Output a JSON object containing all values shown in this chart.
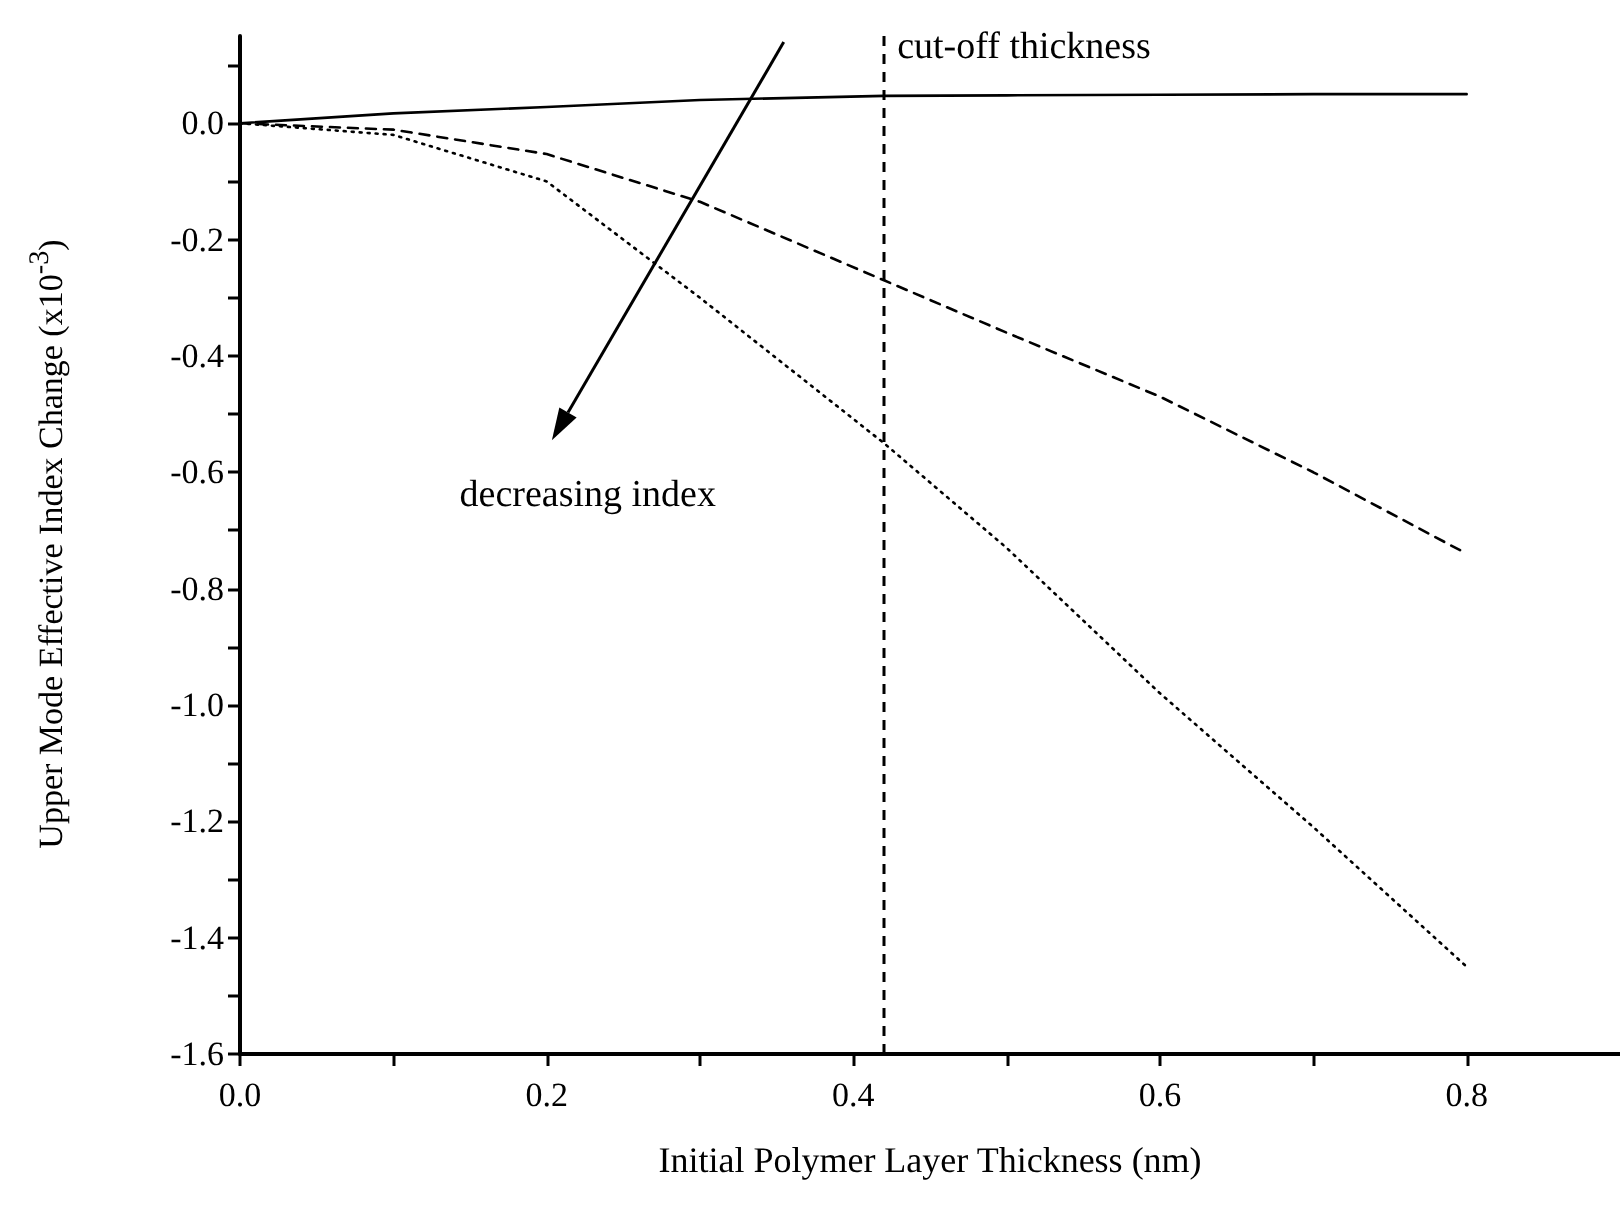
{
  "chart_data": {
    "type": "line",
    "xlabel": "Initial Polymer Layer Thickness (nm)",
    "ylabel": "Upper Mode Effective Index Change (x10$^{-3}$)",
    "x": [
      0,
      0.1,
      0.2,
      0.3,
      0.42,
      0.5,
      0.6,
      0.7,
      0.8
    ],
    "series": [
      {
        "color": "#000000",
        "line_style": "solid",
        "values": [
          0,
          0.017,
          0.028,
          0.04,
          0.047,
          0.048,
          0.049,
          0.05,
          0.05
        ]
      },
      {
        "color": "#000000",
        "line_style": "dashed",
        "values": [
          0,
          -0.011,
          -0.053,
          -0.135,
          -0.27,
          -0.36,
          -0.47,
          -0.6,
          -0.74
        ]
      },
      {
        "color": "#000000",
        "line_style": "dotted",
        "values": [
          0,
          -0.02,
          -0.1,
          -0.3,
          -0.55,
          -0.73,
          -0.98,
          -1.21,
          -1.45
        ]
      }
    ],
    "xlim": [
      0,
      0.9
    ],
    "ylim": [
      -1.6,
      0.15
    ],
    "xticks": [
      {
        "value": 0,
        "label": "0.0"
      },
      {
        "value": 0.1,
        "label": null
      },
      {
        "value": 0.2,
        "label": "0.2"
      },
      {
        "value": 0.3,
        "label": null
      },
      {
        "value": 0.4,
        "label": "0.4"
      },
      {
        "value": 0.5,
        "label": null
      },
      {
        "value": 0.6,
        "label": "0.6"
      },
      {
        "value": 0.7,
        "label": null
      },
      {
        "value": 0.8,
        "label": "0.8"
      }
    ],
    "yticks": [
      {
        "value": -1.6,
        "label": "-1.6"
      },
      {
        "value": -1.5,
        "label": null
      },
      {
        "value": -1.4,
        "label": "-1.4"
      },
      {
        "value": -1.3,
        "label": null
      },
      {
        "value": -1.2,
        "label": "-1.2"
      },
      {
        "value": -1.1,
        "label": null
      },
      {
        "value": -1.0,
        "label": "-1.0"
      },
      {
        "value": -0.9,
        "label": null
      },
      {
        "value": -0.8,
        "label": "-0.8"
      },
      {
        "value": -0.7,
        "label": null
      },
      {
        "value": -0.6,
        "label": "-0.6"
      },
      {
        "value": -0.5,
        "label": null
      },
      {
        "value": -0.4,
        "label": "-0.4"
      },
      {
        "value": -0.3,
        "label": null
      },
      {
        "value": -0.2,
        "label": "-0.2"
      },
      {
        "value": -0.1,
        "label": null
      },
      {
        "value": 0,
        "label": "0.0"
      },
      {
        "value": 0.1,
        "label": null
      }
    ],
    "ref_lines": [
      {
        "axis": "x",
        "value": 0.42,
        "label": "cut-off thickness",
        "color": "#000000",
        "line_style": "dashed"
      }
    ],
    "annotations": [
      "decreasing index"
    ],
    "marker": "none"
  }
}
